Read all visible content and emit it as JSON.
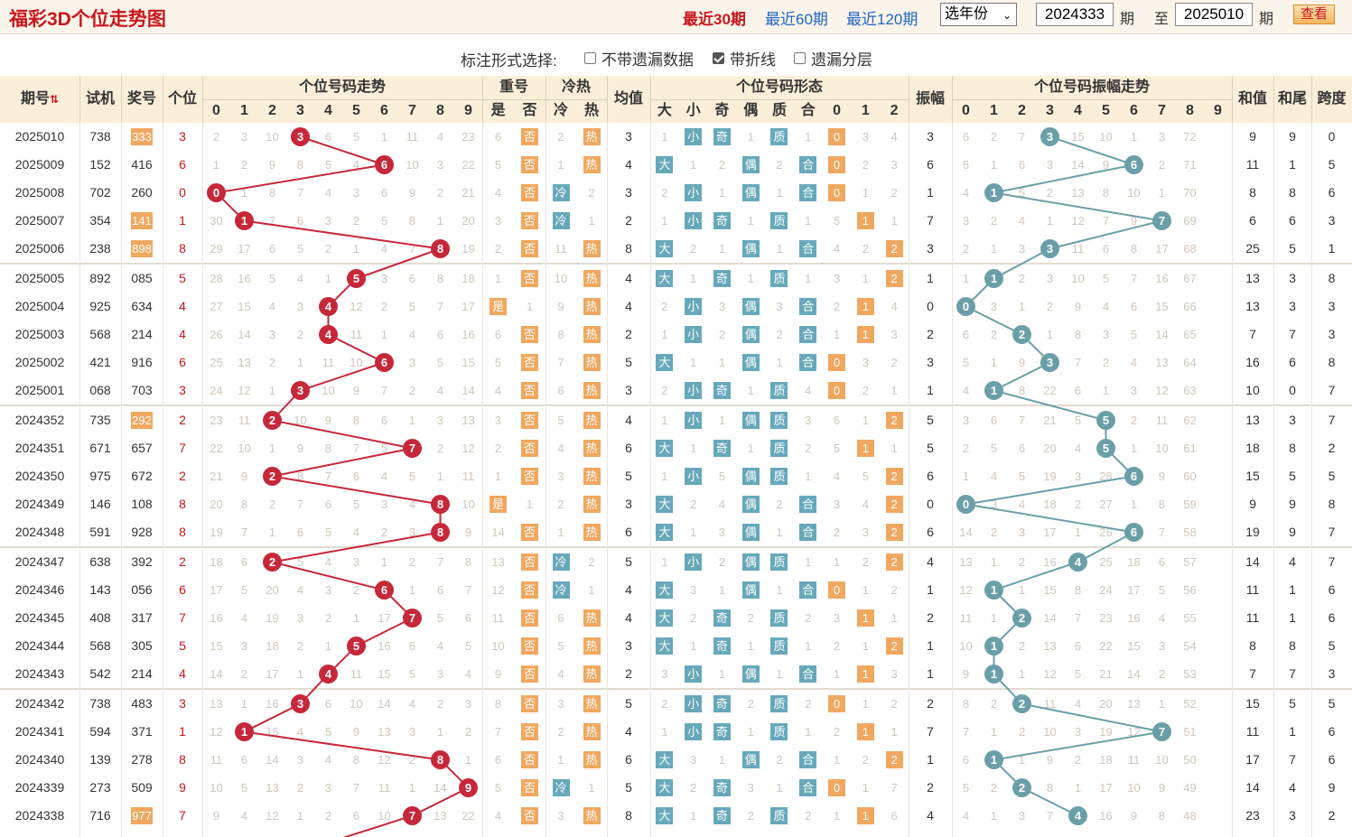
{
  "header": {
    "title": "福彩3D个位走势图",
    "links": [
      "最近30期",
      "最近60期",
      "最近120期"
    ],
    "year_select": "选年份",
    "from_value": "2024333",
    "from_suffix": "期",
    "to_prefix": "至",
    "to_value": "2025010",
    "to_suffix": "期",
    "query_button": "查看"
  },
  "options": {
    "label": "标注形式选择:",
    "items": [
      {
        "label": "不带遗漏数据",
        "checked": false
      },
      {
        "label": "带折线",
        "checked": true
      },
      {
        "label": "遗漏分层",
        "checked": false
      }
    ]
  },
  "columns": {
    "period": "期号",
    "trial": "试机",
    "prize": "奖号",
    "unit": "个位",
    "trend_group": "个位号码走势",
    "digits": [
      "0",
      "1",
      "2",
      "3",
      "4",
      "5",
      "6",
      "7",
      "8",
      "9"
    ],
    "repeat_group": "重号",
    "repeat_sub": [
      "是",
      "否"
    ],
    "hotcold_group": "冷热",
    "hotcold_sub": [
      "冷",
      "热"
    ],
    "avg": "均值",
    "shape_group": "个位号码形态",
    "shape_sub": [
      "大",
      "小",
      "奇",
      "偶",
      "质",
      "合",
      "0",
      "1",
      "2"
    ],
    "amp": "振幅",
    "amp_group": "个位号码振幅走势",
    "sum": "和值",
    "sum_tail": "和尾",
    "span": "跨度"
  },
  "rows": [
    {
      "p": "2025010",
      "t": "738",
      "z": "333",
      "u": 3,
      "trend": [
        2,
        3,
        10,
        null,
        6,
        5,
        1,
        11,
        4,
        23
      ],
      "rep": [
        6,
        "否"
      ],
      "hc": [
        2,
        "热"
      ],
      "avg": 3,
      "shape": [
        "1",
        "小",
        "奇",
        "1",
        "质",
        "1",
        "0",
        "3",
        "4"
      ],
      "amp": 3,
      "ampm": [
        6,
        2,
        7,
        null,
        15,
        10,
        1,
        3,
        72,
        ""
      ],
      "sum": 9,
      "tail": 9,
      "span": 0
    },
    {
      "p": "2025009",
      "t": "152",
      "z": "416",
      "u": 6,
      "trend": [
        1,
        2,
        9,
        8,
        5,
        4,
        null,
        10,
        3,
        22
      ],
      "rep": [
        5,
        "否"
      ],
      "hc": [
        1,
        "热"
      ],
      "avg": 4,
      "shape": [
        "大",
        "1",
        "2",
        "偶",
        "2",
        "合",
        "0",
        "2",
        "3"
      ],
      "amp": 6,
      "ampm": [
        5,
        1,
        6,
        3,
        14,
        9,
        null,
        2,
        71,
        ""
      ],
      "sum": 11,
      "tail": 1,
      "span": 5
    },
    {
      "p": "2025008",
      "t": "702",
      "z": "260",
      "u": 0,
      "trend": [
        null,
        1,
        8,
        7,
        4,
        3,
        6,
        9,
        2,
        21
      ],
      "rep": [
        4,
        "否"
      ],
      "hc": [
        "冷",
        2
      ],
      "avg": 3,
      "shape": [
        "2",
        "小",
        "1",
        "偶",
        "1",
        "合",
        "0",
        "1",
        "2"
      ],
      "amp": 1,
      "ampm": [
        4,
        null,
        5,
        2,
        13,
        8,
        10,
        1,
        70,
        ""
      ],
      "sum": 8,
      "tail": 8,
      "span": 6
    },
    {
      "p": "2025007",
      "t": "354",
      "z": "141",
      "u": 1,
      "trend": [
        30,
        null,
        7,
        6,
        3,
        2,
        5,
        8,
        1,
        20
      ],
      "rep": [
        3,
        "否"
      ],
      "hc": [
        "冷",
        1
      ],
      "avg": 2,
      "shape": [
        "1",
        "小",
        "奇",
        "1",
        "质",
        "1",
        "5",
        "1",
        "1"
      ],
      "amp": 7,
      "ampm": [
        3,
        2,
        4,
        1,
        12,
        7,
        9,
        null,
        69,
        ""
      ],
      "sum": 6,
      "tail": 6,
      "span": 3
    },
    {
      "p": "2025006",
      "t": "238",
      "z": "898",
      "u": 8,
      "trend": [
        29,
        17,
        6,
        5,
        2,
        1,
        4,
        7,
        null,
        19
      ],
      "rep": [
        2,
        "否"
      ],
      "hc": [
        11,
        "热"
      ],
      "avg": 8,
      "shape": [
        "大",
        "2",
        "1",
        "偶",
        "1",
        "合",
        "4",
        "2",
        "2"
      ],
      "amp": 3,
      "ampm": [
        2,
        1,
        3,
        null,
        11,
        6,
        8,
        17,
        68,
        ""
      ],
      "sum": 25,
      "tail": 5,
      "span": 1
    },
    {
      "p": "2025005",
      "t": "892",
      "z": "085",
      "u": 5,
      "trend": [
        28,
        16,
        5,
        4,
        1,
        null,
        3,
        6,
        8,
        18
      ],
      "rep": [
        1,
        "否"
      ],
      "hc": [
        10,
        "热"
      ],
      "avg": 4,
      "shape": [
        "大",
        "1",
        "奇",
        "1",
        "质",
        "1",
        "3",
        "1",
        "2"
      ],
      "amp": 1,
      "ampm": [
        1,
        null,
        2,
        3,
        10,
        5,
        7,
        16,
        67,
        ""
      ],
      "sum": 13,
      "tail": 3,
      "span": 8
    },
    {
      "p": "2025004",
      "t": "925",
      "z": "634",
      "u": 4,
      "trend": [
        27,
        15,
        4,
        3,
        null,
        12,
        2,
        5,
        7,
        17
      ],
      "rep": [
        "是",
        1
      ],
      "hc": [
        9,
        "热"
      ],
      "avg": 4,
      "shape": [
        "2",
        "小",
        "3",
        "偶",
        "3",
        "合",
        "2",
        "1",
        "4"
      ],
      "amp": 0,
      "ampm": [
        null,
        3,
        1,
        2,
        9,
        4,
        6,
        15,
        66,
        ""
      ],
      "sum": 13,
      "tail": 3,
      "span": 3
    },
    {
      "p": "2025003",
      "t": "568",
      "z": "214",
      "u": 4,
      "trend": [
        26,
        14,
        3,
        2,
        null,
        11,
        1,
        4,
        6,
        16
      ],
      "rep": [
        6,
        "否"
      ],
      "hc": [
        8,
        "热"
      ],
      "avg": 2,
      "shape": [
        "1",
        "小",
        "2",
        "偶",
        "2",
        "合",
        "1",
        "1",
        "3"
      ],
      "amp": 2,
      "ampm": [
        6,
        2,
        null,
        1,
        8,
        3,
        5,
        14,
        65,
        ""
      ],
      "sum": 7,
      "tail": 7,
      "span": 3
    },
    {
      "p": "2025002",
      "t": "421",
      "z": "916",
      "u": 6,
      "trend": [
        25,
        13,
        2,
        1,
        11,
        10,
        null,
        3,
        5,
        15
      ],
      "rep": [
        5,
        "否"
      ],
      "hc": [
        7,
        "热"
      ],
      "avg": 5,
      "shape": [
        "大",
        "1",
        "1",
        "偶",
        "1",
        "合",
        "0",
        "3",
        "2"
      ],
      "amp": 3,
      "ampm": [
        5,
        1,
        9,
        null,
        7,
        2,
        4,
        13,
        64,
        ""
      ],
      "sum": 16,
      "tail": 6,
      "span": 8
    },
    {
      "p": "2025001",
      "t": "068",
      "z": "703",
      "u": 3,
      "trend": [
        24,
        12,
        1,
        null,
        10,
        9,
        7,
        2,
        4,
        14
      ],
      "rep": [
        4,
        "否"
      ],
      "hc": [
        6,
        "热"
      ],
      "avg": 3,
      "shape": [
        "2",
        "小",
        "奇",
        "1",
        "质",
        "4",
        "0",
        "2",
        "1"
      ],
      "amp": 1,
      "ampm": [
        4,
        null,
        8,
        22,
        6,
        1,
        3,
        12,
        63,
        ""
      ],
      "sum": 10,
      "tail": 0,
      "span": 7
    },
    {
      "p": "2024352",
      "t": "735",
      "z": "292",
      "u": 2,
      "trend": [
        23,
        11,
        null,
        10,
        9,
        8,
        6,
        1,
        3,
        13
      ],
      "rep": [
        3,
        "否"
      ],
      "hc": [
        5,
        "热"
      ],
      "avg": 4,
      "shape": [
        "1",
        "小",
        "1",
        "偶",
        "质",
        "3",
        "6",
        "1",
        "2"
      ],
      "amp": 5,
      "ampm": [
        3,
        6,
        7,
        21,
        5,
        null,
        2,
        11,
        62,
        ""
      ],
      "sum": 13,
      "tail": 3,
      "span": 7
    },
    {
      "p": "2024351",
      "t": "671",
      "z": "657",
      "u": 7,
      "trend": [
        22,
        10,
        1,
        9,
        8,
        7,
        5,
        null,
        2,
        12
      ],
      "rep": [
        2,
        "否"
      ],
      "hc": [
        4,
        "热"
      ],
      "avg": 6,
      "shape": [
        "大",
        "1",
        "奇",
        "1",
        "质",
        "2",
        "5",
        "1",
        "1"
      ],
      "amp": 5,
      "ampm": [
        2,
        5,
        6,
        20,
        4,
        null,
        1,
        10,
        61,
        ""
      ],
      "sum": 18,
      "tail": 8,
      "span": 2
    },
    {
      "p": "2024350",
      "t": "975",
      "z": "672",
      "u": 2,
      "trend": [
        21,
        9,
        null,
        8,
        7,
        6,
        4,
        5,
        1,
        11
      ],
      "rep": [
        1,
        "否"
      ],
      "hc": [
        3,
        "热"
      ],
      "avg": 5,
      "shape": [
        "1",
        "小",
        "5",
        "偶",
        "质",
        "1",
        "4",
        "5",
        "2"
      ],
      "amp": 6,
      "ampm": [
        1,
        4,
        5,
        19,
        3,
        28,
        null,
        9,
        60,
        ""
      ],
      "sum": 15,
      "tail": 5,
      "span": 5
    },
    {
      "p": "2024349",
      "t": "146",
      "z": "108",
      "u": 8,
      "trend": [
        20,
        8,
        2,
        7,
        6,
        5,
        3,
        4,
        null,
        10
      ],
      "rep": [
        "是",
        1
      ],
      "hc": [
        2,
        "热"
      ],
      "avg": 3,
      "shape": [
        "大",
        "2",
        "4",
        "偶",
        "2",
        "合",
        "3",
        "4",
        "2"
      ],
      "amp": 0,
      "ampm": [
        null,
        3,
        4,
        18,
        2,
        27,
        1,
        8,
        59,
        ""
      ],
      "sum": 9,
      "tail": 9,
      "span": 8
    },
    {
      "p": "2024348",
      "t": "591",
      "z": "928",
      "u": 8,
      "trend": [
        19,
        7,
        1,
        6,
        5,
        4,
        2,
        3,
        null,
        9
      ],
      "rep": [
        14,
        "否"
      ],
      "hc": [
        1,
        "热"
      ],
      "avg": 6,
      "shape": [
        "大",
        "1",
        "3",
        "偶",
        "1",
        "合",
        "2",
        "3",
        "2"
      ],
      "amp": 6,
      "ampm": [
        14,
        2,
        3,
        17,
        1,
        26,
        null,
        7,
        58,
        ""
      ],
      "sum": 19,
      "tail": 9,
      "span": 7
    },
    {
      "p": "2024347",
      "t": "638",
      "z": "392",
      "u": 2,
      "trend": [
        18,
        6,
        null,
        5,
        4,
        3,
        1,
        2,
        7,
        8
      ],
      "rep": [
        13,
        "否"
      ],
      "hc": [
        "冷",
        2
      ],
      "avg": 5,
      "shape": [
        "1",
        "小",
        "2",
        "偶",
        "质",
        "1",
        "1",
        "2",
        "2"
      ],
      "amp": 4,
      "ampm": [
        13,
        1,
        2,
        16,
        null,
        25,
        18,
        6,
        57,
        ""
      ],
      "sum": 14,
      "tail": 4,
      "span": 7
    },
    {
      "p": "2024346",
      "t": "143",
      "z": "056",
      "u": 6,
      "trend": [
        17,
        5,
        20,
        4,
        3,
        2,
        null,
        1,
        6,
        7
      ],
      "rep": [
        12,
        "否"
      ],
      "hc": [
        "冷",
        1
      ],
      "avg": 4,
      "shape": [
        "大",
        "3",
        "1",
        "偶",
        "1",
        "合",
        "0",
        "1",
        "2"
      ],
      "amp": 1,
      "ampm": [
        12,
        null,
        1,
        15,
        8,
        24,
        17,
        5,
        56,
        ""
      ],
      "sum": 11,
      "tail": 1,
      "span": 6
    },
    {
      "p": "2024345",
      "t": "408",
      "z": "317",
      "u": 7,
      "trend": [
        16,
        4,
        19,
        3,
        2,
        1,
        17,
        null,
        5,
        6
      ],
      "rep": [
        11,
        "否"
      ],
      "hc": [
        6,
        "热"
      ],
      "avg": 4,
      "shape": [
        "大",
        "2",
        "奇",
        "2",
        "质",
        "2",
        "3",
        "1",
        "1"
      ],
      "amp": 2,
      "ampm": [
        11,
        1,
        null,
        14,
        7,
        23,
        16,
        4,
        55,
        ""
      ],
      "sum": 11,
      "tail": 1,
      "span": 6
    },
    {
      "p": "2024344",
      "t": "568",
      "z": "305",
      "u": 5,
      "trend": [
        15,
        3,
        18,
        2,
        1,
        null,
        16,
        6,
        4,
        5
      ],
      "rep": [
        10,
        "否"
      ],
      "hc": [
        5,
        "热"
      ],
      "avg": 3,
      "shape": [
        "大",
        "1",
        "奇",
        "1",
        "质",
        "1",
        "2",
        "1",
        "2"
      ],
      "amp": 1,
      "ampm": [
        10,
        null,
        2,
        13,
        6,
        22,
        15,
        3,
        54,
        ""
      ],
      "sum": 8,
      "tail": 8,
      "span": 5
    },
    {
      "p": "2024343",
      "t": "542",
      "z": "214",
      "u": 4,
      "trend": [
        14,
        2,
        17,
        1,
        null,
        11,
        15,
        5,
        3,
        4
      ],
      "rep": [
        9,
        "否"
      ],
      "hc": [
        4,
        "热"
      ],
      "avg": 2,
      "shape": [
        "3",
        "小",
        "1",
        "偶",
        "1",
        "合",
        "1",
        "1",
        "3"
      ],
      "amp": 1,
      "ampm": [
        9,
        null,
        1,
        12,
        5,
        21,
        14,
        2,
        53,
        ""
      ],
      "sum": 7,
      "tail": 7,
      "span": 3
    },
    {
      "p": "2024342",
      "t": "738",
      "z": "483",
      "u": 3,
      "trend": [
        13,
        1,
        16,
        null,
        6,
        10,
        14,
        4,
        2,
        3
      ],
      "rep": [
        8,
        "否"
      ],
      "hc": [
        3,
        "热"
      ],
      "avg": 5,
      "shape": [
        "2",
        "小",
        "奇",
        "2",
        "质",
        "2",
        "0",
        "1",
        "2"
      ],
      "amp": 2,
      "ampm": [
        8,
        2,
        null,
        11,
        4,
        20,
        13,
        1,
        52,
        ""
      ],
      "sum": 15,
      "tail": 5,
      "span": 5
    },
    {
      "p": "2024341",
      "t": "594",
      "z": "371",
      "u": 1,
      "trend": [
        12,
        null,
        15,
        4,
        5,
        9,
        13,
        3,
        1,
        2
      ],
      "rep": [
        7,
        "否"
      ],
      "hc": [
        2,
        "热"
      ],
      "avg": 4,
      "shape": [
        "1",
        "小",
        "奇",
        "1",
        "质",
        "1",
        "2",
        "1",
        "1"
      ],
      "amp": 7,
      "ampm": [
        7,
        1,
        2,
        10,
        3,
        19,
        12,
        null,
        51,
        ""
      ],
      "sum": 11,
      "tail": 1,
      "span": 6
    },
    {
      "p": "2024340",
      "t": "139",
      "z": "278",
      "u": 8,
      "trend": [
        11,
        6,
        14,
        3,
        4,
        8,
        12,
        2,
        null,
        1
      ],
      "rep": [
        6,
        "否"
      ],
      "hc": [
        1,
        "热"
      ],
      "avg": 6,
      "shape": [
        "大",
        "3",
        "1",
        "偶",
        "2",
        "合",
        "1",
        "2",
        "2"
      ],
      "amp": 1,
      "ampm": [
        6,
        null,
        1,
        9,
        2,
        18,
        11,
        10,
        50,
        ""
      ],
      "sum": 17,
      "tail": 7,
      "span": 6
    },
    {
      "p": "2024339",
      "t": "273",
      "z": "509",
      "u": 9,
      "trend": [
        10,
        5,
        13,
        2,
        3,
        7,
        11,
        1,
        14,
        null
      ],
      "rep": [
        5,
        "否"
      ],
      "hc": [
        "冷",
        1
      ],
      "avg": 5,
      "shape": [
        "大",
        "2",
        "奇",
        "3",
        "1",
        "合",
        "0",
        "1",
        "7"
      ],
      "amp": 2,
      "ampm": [
        5,
        2,
        null,
        8,
        1,
        17,
        10,
        9,
        49,
        ""
      ],
      "sum": 14,
      "tail": 4,
      "span": 9
    },
    {
      "p": "2024338",
      "t": "716",
      "z": "977",
      "u": 7,
      "trend": [
        9,
        4,
        12,
        1,
        2,
        6,
        10,
        null,
        13,
        22
      ],
      "rep": [
        4,
        "否"
      ],
      "hc": [
        3,
        "热"
      ],
      "avg": 8,
      "shape": [
        "大",
        "1",
        "奇",
        "2",
        "质",
        "2",
        "1",
        "1",
        "6"
      ],
      "amp": 4,
      "ampm": [
        4,
        1,
        3,
        7,
        null,
        16,
        9,
        8,
        48,
        ""
      ],
      "sum": 23,
      "tail": 3,
      "span": 2
    }
  ]
}
